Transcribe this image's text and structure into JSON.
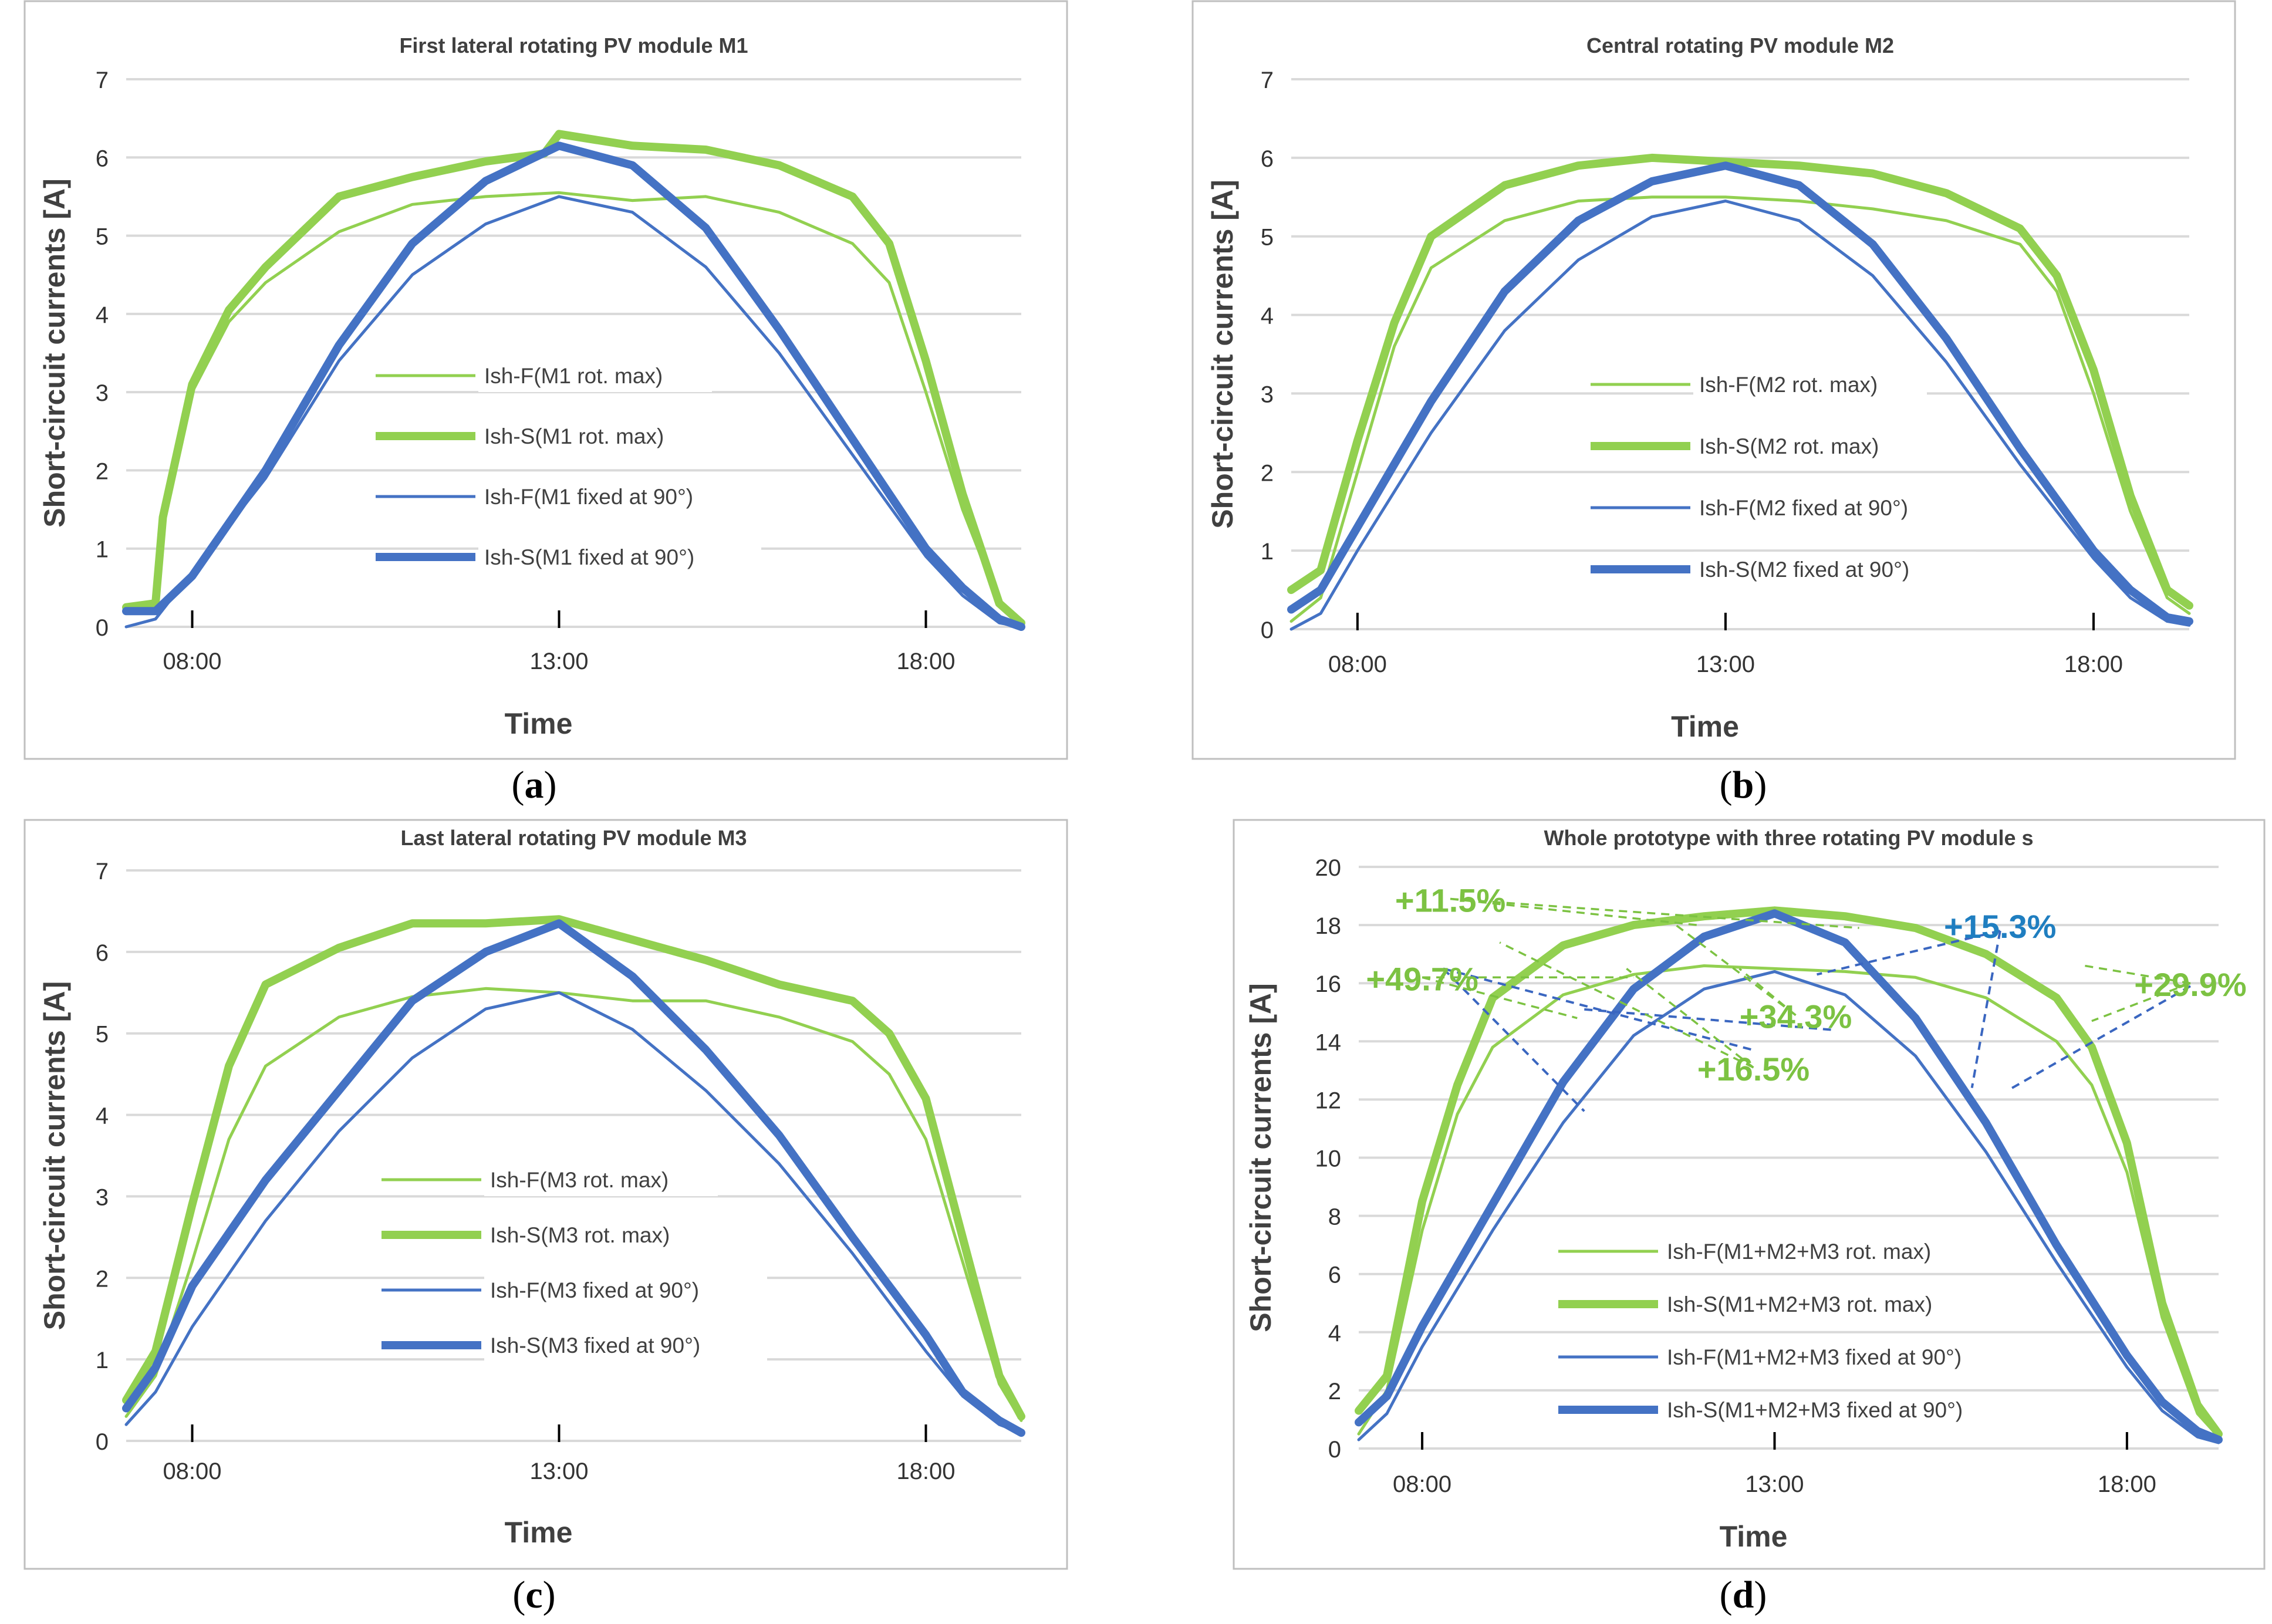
{
  "colors": {
    "green": "#92d050",
    "blue": "#4472c4",
    "grid": "#d9d9d9",
    "frame": "#bfbfbf",
    "ann_green": "#7cc242",
    "ann_blue": "#1f7ec0",
    "ann_blue_line": "#3a66c0"
  },
  "common": {
    "xlabel": "Time",
    "ylabel": "Short-circuit currents [A]",
    "xticks": [
      "08:00",
      "13:00",
      "18:00"
    ],
    "x_tick_values": [
      8,
      13,
      18
    ],
    "xlim": [
      7.1,
      19.3
    ]
  },
  "panel_labels": [
    {
      "open": "(",
      "letter": "a",
      "close": ")"
    },
    {
      "open": "(",
      "letter": "b",
      "close": ")"
    },
    {
      "open": "(",
      "letter": "c",
      "close": ")"
    },
    {
      "open": "(",
      "letter": "d",
      "close": ")"
    }
  ],
  "chart_data": [
    {
      "type": "line",
      "title": "First lateral rotating PV module  M1",
      "xlabel": "Time",
      "ylabel": "Short-circuit currents [A]",
      "ylim": [
        0,
        7
      ],
      "yticks": [
        0,
        1,
        2,
        3,
        4,
        5,
        6,
        7
      ],
      "legend": [
        "Ish-F(M1 rot. max)",
        "Ish-S(M1 rot. max)",
        "Ish-F(M1 fixed at 90°)",
        "Ish-S(M1 fixed at 90°)"
      ],
      "series": [
        {
          "name": "Ish-F(M1 rot. max)",
          "x": [
            7.1,
            7.5,
            7.6,
            8.0,
            8.5,
            9.0,
            10.0,
            11.0,
            12.0,
            13.0,
            14.0,
            15.0,
            16.0,
            17.0,
            17.5,
            18.0,
            18.5,
            19.0,
            19.3
          ],
          "values": [
            0.25,
            0.3,
            1.3,
            3.0,
            3.9,
            4.4,
            5.05,
            5.4,
            5.5,
            5.55,
            5.45,
            5.5,
            5.3,
            4.9,
            4.4,
            3.0,
            1.5,
            0.3,
            0.05
          ]
        },
        {
          "name": "Ish-S(M1 rot. max)",
          "x": [
            7.1,
            7.5,
            7.6,
            8.0,
            8.5,
            9.0,
            10.0,
            11.0,
            12.0,
            12.8,
            13.0,
            14.0,
            15.0,
            16.0,
            17.0,
            17.5,
            18.0,
            18.5,
            19.0,
            19.3
          ],
          "values": [
            0.25,
            0.3,
            1.4,
            3.1,
            4.05,
            4.6,
            5.5,
            5.75,
            5.95,
            6.05,
            6.3,
            6.15,
            6.1,
            5.9,
            5.5,
            4.9,
            3.4,
            1.7,
            0.3,
            0.05
          ]
        },
        {
          "name": "Ish-F(M1 fixed at 90°)",
          "x": [
            7.1,
            7.5,
            8.0,
            9.0,
            10.0,
            11.0,
            12.0,
            13.0,
            14.0,
            15.0,
            16.0,
            17.0,
            18.0,
            18.5,
            19.0,
            19.3
          ],
          "values": [
            0.0,
            0.1,
            0.7,
            1.9,
            3.4,
            4.5,
            5.15,
            5.5,
            5.3,
            4.6,
            3.5,
            2.2,
            0.9,
            0.4,
            0.05,
            0.0
          ]
        },
        {
          "name": "Ish-S(M1 fixed at 90°)",
          "x": [
            7.1,
            7.5,
            8.0,
            9.0,
            10.0,
            11.0,
            12.0,
            13.0,
            14.0,
            15.0,
            16.0,
            17.0,
            18.0,
            18.5,
            19.0,
            19.3
          ],
          "values": [
            0.2,
            0.2,
            0.65,
            2.0,
            3.6,
            4.9,
            5.7,
            6.15,
            5.9,
            5.1,
            3.8,
            2.4,
            1.0,
            0.5,
            0.1,
            0.0
          ]
        }
      ]
    },
    {
      "type": "line",
      "title": "Central rotating PV module  M2",
      "xlabel": "Time",
      "ylabel": "Short-circuit currents [A]",
      "ylim": [
        0,
        7
      ],
      "yticks": [
        0,
        1,
        2,
        3,
        4,
        5,
        6,
        7
      ],
      "legend": [
        "Ish-F(M2 rot. max)",
        "Ish-S(M2 rot. max)",
        "Ish-F(M2 fixed at 90°)",
        "Ish-S(M2 fixed at 90°)"
      ],
      "series": [
        {
          "name": "Ish-F(M2 rot. max)",
          "x": [
            7.1,
            7.5,
            8.0,
            8.5,
            9.0,
            10.0,
            11.0,
            12.0,
            13.0,
            14.0,
            15.0,
            16.0,
            17.0,
            17.5,
            18.0,
            18.5,
            19.0,
            19.3
          ],
          "values": [
            0.1,
            0.4,
            2.0,
            3.6,
            4.6,
            5.2,
            5.45,
            5.5,
            5.5,
            5.45,
            5.35,
            5.2,
            4.9,
            4.3,
            3.0,
            1.5,
            0.4,
            0.2
          ]
        },
        {
          "name": "Ish-S(M2 rot. max)",
          "x": [
            7.1,
            7.5,
            8.0,
            8.5,
            9.0,
            10.0,
            11.0,
            12.0,
            13.0,
            14.0,
            15.0,
            16.0,
            17.0,
            17.5,
            18.0,
            18.5,
            19.0,
            19.3
          ],
          "values": [
            0.5,
            0.75,
            2.4,
            3.9,
            5.0,
            5.65,
            5.9,
            6.0,
            5.95,
            5.9,
            5.8,
            5.55,
            5.1,
            4.5,
            3.3,
            1.7,
            0.5,
            0.3
          ]
        },
        {
          "name": "Ish-F(M2 fixed at 90°)",
          "x": [
            7.1,
            7.5,
            8.0,
            9.0,
            10.0,
            11.0,
            12.0,
            13.0,
            14.0,
            15.0,
            16.0,
            17.0,
            18.0,
            18.5,
            19.0,
            19.3
          ],
          "values": [
            0.0,
            0.2,
            1.0,
            2.5,
            3.8,
            4.7,
            5.25,
            5.45,
            5.2,
            4.5,
            3.4,
            2.1,
            0.9,
            0.4,
            0.1,
            0.05
          ]
        },
        {
          "name": "Ish-S(M2 fixed at 90°)",
          "x": [
            7.1,
            7.5,
            8.0,
            9.0,
            10.0,
            11.0,
            12.0,
            13.0,
            14.0,
            15.0,
            16.0,
            17.0,
            18.0,
            18.5,
            19.0,
            19.3
          ],
          "values": [
            0.25,
            0.5,
            1.3,
            2.9,
            4.3,
            5.2,
            5.7,
            5.9,
            5.65,
            4.9,
            3.7,
            2.3,
            1.0,
            0.5,
            0.15,
            0.1
          ]
        }
      ]
    },
    {
      "type": "line",
      "title": "Last lateral rotating PV module  M3",
      "xlabel": "Time",
      "ylabel": "Short-circuit currents [A]",
      "ylim": [
        0,
        7
      ],
      "yticks": [
        0,
        1,
        2,
        3,
        4,
        5,
        6,
        7
      ],
      "legend": [
        "Ish-F(M3 rot. max)",
        "Ish-S(M3 rot. max)",
        "Ish-F(M3 fixed at 90°)",
        "Ish-S(M3 fixed at 90°)"
      ],
      "series": [
        {
          "name": "Ish-F(M3 rot. max)",
          "x": [
            7.1,
            7.5,
            8.0,
            8.5,
            9.0,
            10.0,
            11.0,
            12.0,
            13.0,
            14.0,
            15.0,
            16.0,
            17.0,
            17.5,
            18.0,
            18.5,
            19.0,
            19.3
          ],
          "values": [
            0.3,
            0.8,
            2.2,
            3.7,
            4.6,
            5.2,
            5.45,
            5.55,
            5.5,
            5.4,
            5.4,
            5.2,
            4.9,
            4.5,
            3.7,
            2.2,
            0.7,
            0.25
          ]
        },
        {
          "name": "Ish-S(M3 rot. max)",
          "x": [
            7.1,
            7.5,
            8.0,
            8.5,
            9.0,
            10.0,
            11.0,
            12.0,
            13.0,
            14.0,
            15.0,
            16.0,
            17.0,
            17.5,
            18.0,
            18.5,
            19.0,
            19.3
          ],
          "values": [
            0.5,
            1.1,
            2.9,
            4.6,
            5.6,
            6.05,
            6.35,
            6.35,
            6.4,
            6.15,
            5.9,
            5.6,
            5.4,
            5.0,
            4.2,
            2.5,
            0.8,
            0.3
          ]
        },
        {
          "name": "Ish-F(M3 fixed at 90°)",
          "x": [
            7.1,
            7.5,
            8.0,
            9.0,
            10.0,
            11.0,
            12.0,
            13.0,
            14.0,
            15.0,
            16.0,
            17.0,
            18.0,
            18.5,
            19.0,
            19.3
          ],
          "values": [
            0.2,
            0.6,
            1.4,
            2.7,
            3.8,
            4.7,
            5.3,
            5.5,
            5.05,
            4.3,
            3.4,
            2.3,
            1.1,
            0.55,
            0.2,
            0.1
          ]
        },
        {
          "name": "Ish-S(M3 fixed at 90°)",
          "x": [
            7.1,
            7.5,
            8.0,
            9.0,
            10.0,
            11.0,
            12.0,
            13.0,
            14.0,
            15.0,
            16.0,
            17.0,
            18.0,
            18.5,
            19.0,
            19.3
          ],
          "values": [
            0.4,
            0.9,
            1.9,
            3.2,
            4.3,
            5.4,
            6.0,
            6.35,
            5.7,
            4.8,
            3.75,
            2.5,
            1.3,
            0.6,
            0.25,
            0.1
          ]
        }
      ]
    },
    {
      "type": "line",
      "title": "Whole prototype with three rotating PV module s",
      "xlabel": "Time",
      "ylabel": "Short-circuit currents [A]",
      "ylim": [
        0,
        20
      ],
      "yticks": [
        0,
        2,
        4,
        6,
        8,
        10,
        12,
        14,
        16,
        18,
        20
      ],
      "legend": [
        "Ish-F(M1+M2+M3 rot. max)",
        "Ish-S(M1+M2+M3 rot. max)",
        "Ish-F(M1+M2+M3 fixed at 90°)",
        "Ish-S(M1+M2+M3 fixed at 90°)"
      ],
      "series": [
        {
          "name": "Ish-F(M1+M2+M3 rot. max)",
          "x": [
            7.1,
            7.5,
            8.0,
            8.5,
            9.0,
            10.0,
            11.0,
            12.0,
            13.0,
            14.0,
            15.0,
            16.0,
            17.0,
            17.5,
            18.0,
            18.5,
            19.0,
            19.3
          ],
          "values": [
            0.5,
            2.0,
            7.5,
            11.5,
            13.8,
            15.6,
            16.3,
            16.6,
            16.5,
            16.4,
            16.2,
            15.5,
            14.0,
            12.5,
            9.5,
            4.5,
            1.2,
            0.4
          ]
        },
        {
          "name": "Ish-S(M1+M2+M3 rot. max)",
          "x": [
            7.1,
            7.5,
            8.0,
            8.5,
            9.0,
            10.0,
            11.0,
            12.0,
            13.0,
            14.0,
            15.0,
            16.0,
            17.0,
            17.5,
            18.0,
            18.5,
            19.0,
            19.3
          ],
          "values": [
            1.3,
            2.5,
            8.5,
            12.5,
            15.5,
            17.3,
            18.0,
            18.3,
            18.5,
            18.3,
            17.9,
            17.0,
            15.5,
            13.8,
            10.5,
            5.0,
            1.5,
            0.5
          ]
        },
        {
          "name": "Ish-F(M1+M2+M3 fixed at 90°)",
          "x": [
            7.1,
            7.5,
            8.0,
            9.0,
            10.0,
            11.0,
            12.0,
            13.0,
            14.0,
            15.0,
            16.0,
            17.0,
            18.0,
            18.5,
            19.0,
            19.3
          ],
          "values": [
            0.3,
            1.2,
            3.5,
            7.5,
            11.2,
            14.2,
            15.8,
            16.4,
            15.6,
            13.5,
            10.2,
            6.4,
            2.8,
            1.3,
            0.4,
            0.2
          ]
        },
        {
          "name": "Ish-S(M1+M2+M3 fixed at 90°)",
          "x": [
            7.1,
            7.5,
            8.0,
            9.0,
            10.0,
            11.0,
            12.0,
            13.0,
            14.0,
            15.0,
            16.0,
            17.0,
            18.0,
            18.5,
            19.0,
            19.3
          ],
          "values": [
            0.9,
            1.8,
            4.2,
            8.4,
            12.6,
            15.8,
            17.6,
            18.4,
            17.4,
            14.8,
            11.2,
            7.0,
            3.2,
            1.6,
            0.6,
            0.3
          ]
        }
      ],
      "annotations": [
        {
          "text": "+11.5%",
          "color": "green",
          "anchor_x": 8.4,
          "anchor_y": 18.9,
          "points": [
            [
              11.9,
              18.0
            ],
            [
              14.2,
              17.9
            ]
          ]
        },
        {
          "text": "+49.7%",
          "color": "green",
          "anchor_x": 8.0,
          "anchor_y": 16.2,
          "points": [
            [
              11.0,
              16.2
            ],
            [
              10.2,
              14.8
            ]
          ]
        },
        {
          "text": "+34.3%",
          "color": "green",
          "anchor_x": 13.3,
          "anchor_y": 14.9,
          "points": [
            [
              12.5,
              16.5
            ],
            [
              11.6,
              18.0
            ]
          ]
        },
        {
          "text": "+16.5%",
          "color": "green",
          "anchor_x": 12.7,
          "anchor_y": 13.1,
          "points": [
            [
              10.9,
              16.5
            ],
            [
              9.1,
              17.4
            ]
          ]
        },
        {
          "text": "+29.9%",
          "color": "green",
          "anchor_x": 18.9,
          "anchor_y": 16.0,
          "points": [
            [
              17.5,
              14.7
            ],
            [
              17.4,
              16.6
            ]
          ]
        },
        {
          "text": "+15.3%",
          "color": "blue",
          "anchor_x": 16.2,
          "anchor_y": 18.0,
          "points": [
            [
              13.8,
              16.4
            ],
            [
              14.5,
              15.2
            ]
          ]
        }
      ],
      "annotation_blue_lines": [
        {
          "from": [
            8.3,
            16.5
          ],
          "to": [
            10.3,
            11.6
          ]
        },
        {
          "from": [
            8.3,
            16.5
          ],
          "to": [
            12.7,
            13.7
          ]
        },
        {
          "from": [
            10.3,
            15.1
          ],
          "to": [
            13.8,
            14.4
          ]
        },
        {
          "from": [
            16.2,
            17.8
          ],
          "to": [
            13.6,
            16.3
          ]
        },
        {
          "from": [
            16.2,
            17.8
          ],
          "to": [
            15.8,
            12.4
          ]
        },
        {
          "from": [
            18.9,
            15.9
          ],
          "to": [
            16.3,
            12.3
          ]
        }
      ]
    }
  ]
}
